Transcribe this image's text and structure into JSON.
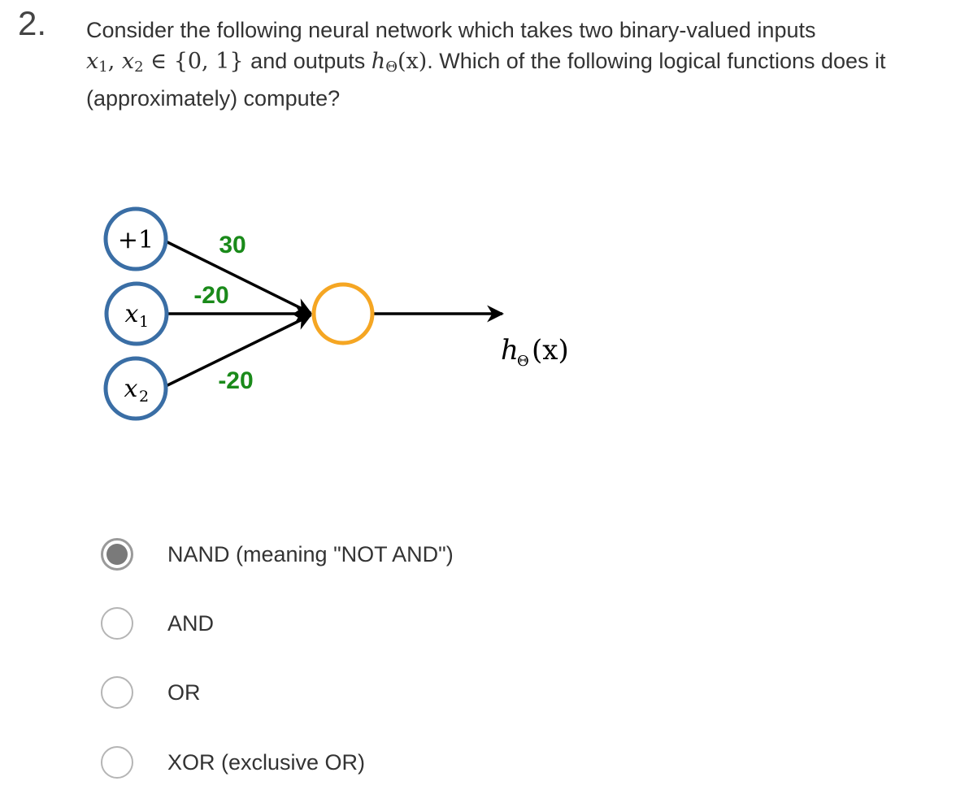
{
  "question": {
    "number": "2.",
    "text_line1": "Consider the following neural network which takes two binary-valued inputs",
    "math_x1": "x",
    "math_x1_sub": "1",
    "math_sep": ", ",
    "math_x2": "x",
    "math_x2_sub": "2",
    "math_in_set": " ∈ {0, 1} ",
    "text_and_outputs": "and outputs ",
    "math_h": "h",
    "math_h_sub": "Θ",
    "math_h_arg": "(x)",
    "text_line2_rest": ". Which of the following logical functions does it (approximately) compute?"
  },
  "network": {
    "nodes": {
      "bias": "+1",
      "x1": "x",
      "x1_sub": "1",
      "x2": "x",
      "x2_sub": "2",
      "output_label": "h",
      "output_label_sub": "Θ",
      "output_label_arg": "(x)"
    },
    "weights": {
      "bias_weight": "30",
      "x1_weight": "-20",
      "x2_weight": "-20"
    },
    "colors": {
      "input_node": "#3a6ea5",
      "output_node": "#f5a623",
      "weight_text": "#1a8a1a",
      "edge": "#000000"
    }
  },
  "options": [
    {
      "label": "NAND (meaning \"NOT AND\")",
      "selected": true
    },
    {
      "label": "AND",
      "selected": false
    },
    {
      "label": "OR",
      "selected": false
    },
    {
      "label": "XOR (exclusive OR)",
      "selected": false
    }
  ]
}
